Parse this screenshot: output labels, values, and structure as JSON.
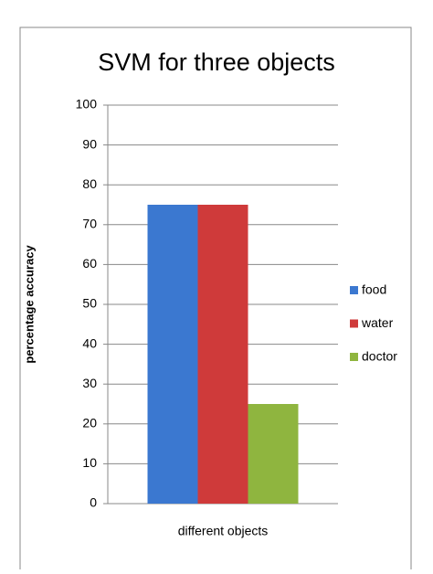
{
  "chart_data": {
    "type": "bar",
    "title": "SVM for three objects",
    "y_label": "percentage accuracy",
    "categories": [
      "different objects"
    ],
    "series": [
      {
        "name": "food",
        "color": "#3b78d0",
        "values": [
          75
        ]
      },
      {
        "name": "water",
        "color": "#cf3a3a",
        "values": [
          75
        ]
      },
      {
        "name": "doctor",
        "color": "#8fb53f",
        "values": [
          25
        ]
      }
    ],
    "ylim": [
      0,
      100
    ],
    "yticks": [
      0,
      10,
      20,
      30,
      40,
      50,
      60,
      70,
      80,
      90,
      100
    ],
    "grid": true,
    "legend": "right"
  }
}
